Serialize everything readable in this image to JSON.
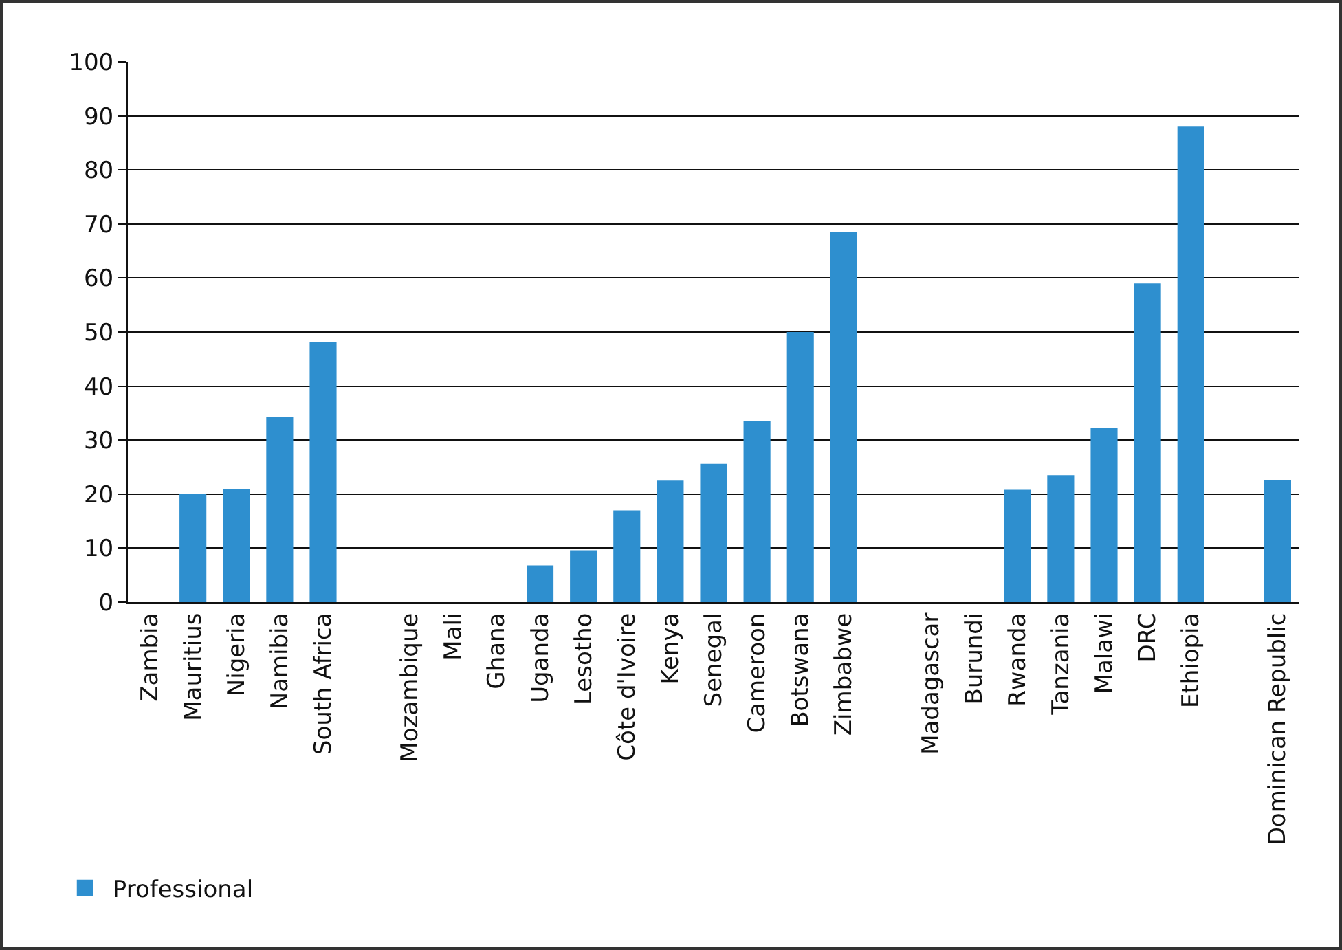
{
  "chart_data": {
    "type": "bar",
    "categories": [
      "Zambia",
      "Mauritius",
      "Nigeria",
      "Namibia",
      "South Africa",
      null,
      "Mozambique",
      "Mali",
      "Ghana",
      "Uganda",
      "Lesotho",
      "Côte d'Ivoire",
      "Kenya",
      "Senegal",
      "Cameroon",
      "Botswana",
      "Zimbabwe",
      null,
      "Madagascar",
      "Burundi",
      "Rwanda",
      "Tanzania",
      "Malawi",
      "DRC",
      "Ethiopia",
      null,
      "Dominican Republic"
    ],
    "series": [
      {
        "name": "Professional",
        "color": "#2e8fcf",
        "values": [
          null,
          20,
          21,
          34.3,
          48.2,
          null,
          null,
          null,
          null,
          6.8,
          9.6,
          17,
          22.5,
          25.6,
          33.5,
          50,
          68.5,
          null,
          null,
          null,
          20.8,
          23.5,
          32.2,
          59,
          88,
          null,
          22.6
        ]
      }
    ],
    "ylim": [
      0,
      100
    ],
    "yticks": [
      0,
      10,
      20,
      30,
      40,
      50,
      60,
      70,
      80,
      90,
      100
    ],
    "grid": "y",
    "legend": "bottom left"
  }
}
